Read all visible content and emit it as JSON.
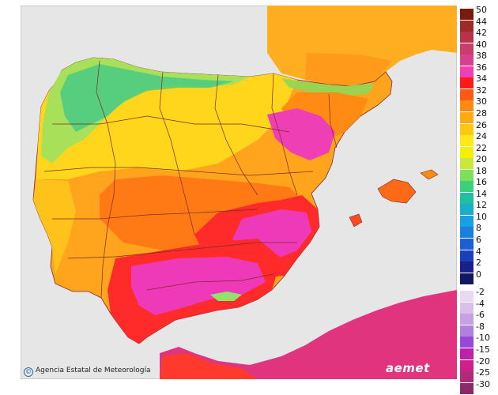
{
  "credit": {
    "symbol": "©",
    "text": "Agencia Estatal de Meteorología"
  },
  "logo": {
    "text": "aemet"
  },
  "legend": {
    "labels": [
      "50",
      "44",
      "42",
      "40",
      "38",
      "36",
      "34",
      "32",
      "30",
      "28",
      "26",
      "24",
      "22",
      "20",
      "18",
      "16",
      "14",
      "12",
      "10",
      "8",
      "6",
      "4",
      "2",
      "0",
      "-2",
      "-4",
      "-6",
      "-8",
      "-10",
      "-15",
      "-20",
      "-25",
      "-30"
    ],
    "colors": [
      "#7a1a0a",
      "#9e2a2a",
      "#b8324a",
      "#c93d6a",
      "#d83f8f",
      "#ef3fb4",
      "#ff1a1a",
      "#ff5a14",
      "#ff8a10",
      "#ffaa10",
      "#ffc810",
      "#ffe81a",
      "#f4f000",
      "#c8e83a",
      "#7ee05a",
      "#3cd07a",
      "#20c0a0",
      "#18b0c8",
      "#18a0e0",
      "#1a80e0",
      "#1a60d0",
      "#1a40b8",
      "#18208a",
      "#101860",
      "#e8d8f0",
      "#d8c0ea",
      "#c8a0e4",
      "#b080de",
      "#9848d8",
      "#c020a8",
      "#d01e8a",
      "#b02a7a",
      "#8a2a6a"
    ]
  },
  "map_colors": {
    "sea": "#e6e6e6",
    "land_hot": "#ff9a1a",
    "land_warm": "#ffd21a",
    "land_mild": "#ffef3a",
    "land_cool": "#8fe36a",
    "land_very_hot": "#ff2a2a",
    "land_extreme": "#ee3ab8",
    "north_africa": "#e0357e",
    "border": "#7a2a2a"
  }
}
